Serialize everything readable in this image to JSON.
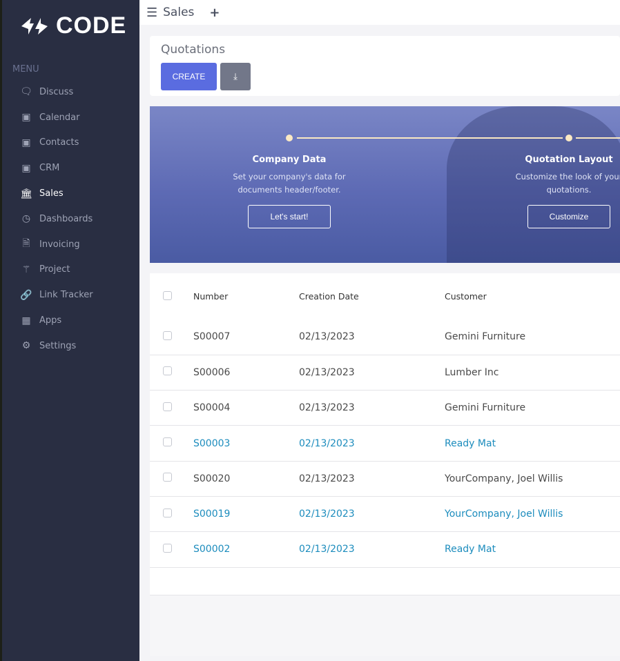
{
  "brand": {
    "name": "CODE"
  },
  "sidebar": {
    "heading": "MENU",
    "items": [
      {
        "label": "Discuss",
        "icon": "chat-icon"
      },
      {
        "label": "Calendar",
        "icon": "app-placeholder-icon"
      },
      {
        "label": "Contacts",
        "icon": "app-placeholder-icon"
      },
      {
        "label": "CRM",
        "icon": "app-placeholder-icon"
      },
      {
        "label": "Sales",
        "icon": "bank-icon",
        "active": true
      },
      {
        "label": "Dashboards",
        "icon": "speedometer-icon"
      },
      {
        "label": "Invoicing",
        "icon": "invoice-icon"
      },
      {
        "label": "Project",
        "icon": "puzzle-icon"
      },
      {
        "label": "Link Tracker",
        "icon": "link-icon"
      },
      {
        "label": "Apps",
        "icon": "grid-icon"
      },
      {
        "label": "Settings",
        "icon": "gear-icon"
      }
    ]
  },
  "topbar": {
    "title": "Sales",
    "add": "+"
  },
  "control_panel": {
    "title": "Quotations",
    "create_label": "CREATE",
    "download_icon": "download-icon"
  },
  "banner": {
    "steps": [
      {
        "title": "Company Data",
        "desc1": "Set your company's data for",
        "desc2": "documents header/footer.",
        "button": "Let's start!"
      },
      {
        "title": "Quotation Layout",
        "desc1": "Customize the look of your",
        "desc2": "quotations.",
        "button": "Customize"
      }
    ]
  },
  "table": {
    "headers": [
      "Number",
      "Creation Date",
      "Customer"
    ],
    "rows": [
      {
        "number": "S00007",
        "date": "02/13/2023",
        "customer": "Gemini Furniture",
        "highlight": false
      },
      {
        "number": "S00006",
        "date": "02/13/2023",
        "customer": "Lumber Inc",
        "highlight": false
      },
      {
        "number": "S00004",
        "date": "02/13/2023",
        "customer": "Gemini Furniture",
        "highlight": false
      },
      {
        "number": "S00003",
        "date": "02/13/2023",
        "customer": "Ready Mat",
        "highlight": true
      },
      {
        "number": "S00020",
        "date": "02/13/2023",
        "customer": "YourCompany, Joel Willis",
        "highlight": false
      },
      {
        "number": "S00019",
        "date": "02/13/2023",
        "customer": "YourCompany, Joel Willis",
        "highlight": true
      },
      {
        "number": "S00002",
        "date": "02/13/2023",
        "customer": "Ready Mat",
        "highlight": true
      }
    ]
  },
  "colors": {
    "sidebar": "#292e42",
    "primary": "#5a6ce0",
    "link": "#1c8cbd",
    "accent": "#fbe9c3"
  }
}
